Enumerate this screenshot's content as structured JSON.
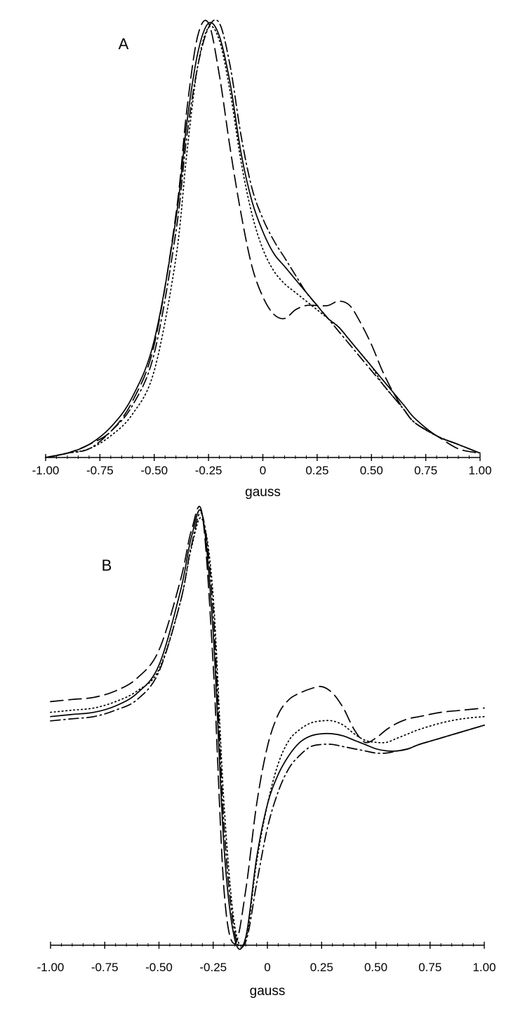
{
  "chart_data": [
    {
      "type": "line",
      "panel_label": "A",
      "xlabel": "gauss",
      "ylabel": "",
      "xlim": [
        -1.0,
        1.0
      ],
      "y_normalized": true,
      "ylim": [
        0,
        1.0
      ],
      "grid": false,
      "legend": "none",
      "x_tick_labels": [
        "-1.00",
        "-0.75",
        "-0.50",
        "-0.25",
        "0",
        "0.25",
        "0.50",
        "0.75",
        "1.00"
      ],
      "x": [
        -1.0,
        -0.9,
        -0.8,
        -0.7,
        -0.6,
        -0.5,
        -0.4,
        -0.35,
        -0.3,
        -0.25,
        -0.2,
        -0.15,
        -0.1,
        -0.05,
        0.0,
        0.05,
        0.1,
        0.15,
        0.2,
        0.25,
        0.3,
        0.35,
        0.4,
        0.45,
        0.5,
        0.55,
        0.6,
        0.65,
        0.7,
        0.8,
        0.9,
        1.0
      ],
      "series": [
        {
          "style": "solid",
          "values": [
            0.0,
            0.01,
            0.03,
            0.07,
            0.14,
            0.27,
            0.55,
            0.77,
            0.93,
            1.0,
            0.97,
            0.86,
            0.7,
            0.59,
            0.52,
            0.47,
            0.44,
            0.41,
            0.38,
            0.35,
            0.32,
            0.3,
            0.27,
            0.24,
            0.21,
            0.18,
            0.15,
            0.12,
            0.09,
            0.05,
            0.03,
            0.01
          ]
        },
        {
          "style": "dashed",
          "values": [
            0.0,
            0.01,
            0.03,
            0.06,
            0.13,
            0.26,
            0.56,
            0.8,
            0.97,
            1.0,
            0.88,
            0.71,
            0.56,
            0.44,
            0.37,
            0.33,
            0.32,
            0.34,
            0.35,
            0.35,
            0.35,
            0.36,
            0.35,
            0.31,
            0.26,
            0.2,
            0.15,
            0.11,
            0.08,
            0.05,
            0.02,
            0.01
          ]
        },
        {
          "style": "dotted",
          "values": [
            0.0,
            0.01,
            0.02,
            0.05,
            0.1,
            0.2,
            0.46,
            0.7,
            0.9,
            0.99,
            0.96,
            0.84,
            0.68,
            0.56,
            0.48,
            0.43,
            0.4,
            0.38,
            0.36,
            0.34,
            0.32,
            0.3,
            0.27,
            0.24,
            0.21,
            0.17,
            0.14,
            0.11,
            0.08,
            0.05,
            0.03,
            0.01
          ]
        },
        {
          "style": "dash-dot",
          "values": [
            0.0,
            0.01,
            0.02,
            0.06,
            0.12,
            0.24,
            0.52,
            0.74,
            0.9,
            0.99,
            1.0,
            0.9,
            0.74,
            0.62,
            0.55,
            0.5,
            0.46,
            0.42,
            0.38,
            0.35,
            0.32,
            0.29,
            0.26,
            0.23,
            0.2,
            0.17,
            0.14,
            0.11,
            0.08,
            0.05,
            0.03,
            0.01
          ]
        }
      ]
    },
    {
      "type": "line",
      "panel_label": "B",
      "xlabel": "gauss",
      "ylabel": "",
      "xlim": [
        -1.0,
        1.0
      ],
      "y_normalized": true,
      "ylim": [
        -1.0,
        1.0
      ],
      "grid": false,
      "legend": "none",
      "x_tick_labels": [
        "-1.00",
        "-0.75",
        "-0.50",
        "-0.25",
        "0",
        "0.25",
        "0.50",
        "0.75",
        "1.00"
      ],
      "x": [
        -1.0,
        -0.9,
        -0.8,
        -0.7,
        -0.6,
        -0.5,
        -0.4,
        -0.35,
        -0.3,
        -0.25,
        -0.2,
        -0.15,
        -0.1,
        -0.05,
        0.0,
        0.05,
        0.1,
        0.15,
        0.2,
        0.25,
        0.3,
        0.35,
        0.4,
        0.45,
        0.5,
        0.55,
        0.6,
        0.65,
        0.7,
        0.8,
        0.9,
        1.0
      ],
      "series": [
        {
          "style": "solid",
          "values": [
            0.06,
            0.07,
            0.08,
            0.11,
            0.17,
            0.3,
            0.65,
            0.9,
            1.0,
            0.45,
            -0.55,
            -0.98,
            -0.97,
            -0.6,
            -0.35,
            -0.21,
            -0.12,
            -0.06,
            -0.03,
            -0.02,
            -0.02,
            -0.03,
            -0.05,
            -0.07,
            -0.09,
            -0.1,
            -0.1,
            -0.09,
            -0.07,
            -0.04,
            -0.01,
            0.02
          ]
        },
        {
          "style": "dashed",
          "values": [
            0.13,
            0.14,
            0.15,
            0.18,
            0.24,
            0.37,
            0.7,
            0.93,
            1.0,
            0.3,
            -0.75,
            -1.0,
            -0.75,
            -0.35,
            -0.08,
            0.07,
            0.14,
            0.17,
            0.19,
            0.2,
            0.17,
            0.1,
            0.0,
            -0.06,
            -0.04,
            0.0,
            0.03,
            0.05,
            0.06,
            0.08,
            0.09,
            0.1
          ]
        },
        {
          "style": "dotted",
          "values": [
            0.08,
            0.09,
            0.1,
            0.13,
            0.18,
            0.28,
            0.6,
            0.85,
            0.98,
            0.62,
            -0.35,
            -0.92,
            -0.98,
            -0.62,
            -0.35,
            -0.16,
            -0.05,
            0.0,
            0.03,
            0.04,
            0.04,
            0.02,
            -0.02,
            -0.05,
            -0.06,
            -0.06,
            -0.04,
            -0.02,
            0.0,
            0.03,
            0.05,
            0.06
          ]
        },
        {
          "style": "dash-dot",
          "values": [
            0.04,
            0.05,
            0.06,
            0.09,
            0.14,
            0.27,
            0.6,
            0.86,
            1.0,
            0.55,
            -0.45,
            -0.95,
            -0.99,
            -0.72,
            -0.46,
            -0.29,
            -0.18,
            -0.12,
            -0.08,
            -0.07,
            -0.07,
            -0.08,
            -0.09,
            -0.1,
            -0.11,
            -0.11,
            -0.1,
            -0.09,
            -0.07,
            -0.04,
            -0.01,
            0.02
          ]
        }
      ]
    }
  ]
}
